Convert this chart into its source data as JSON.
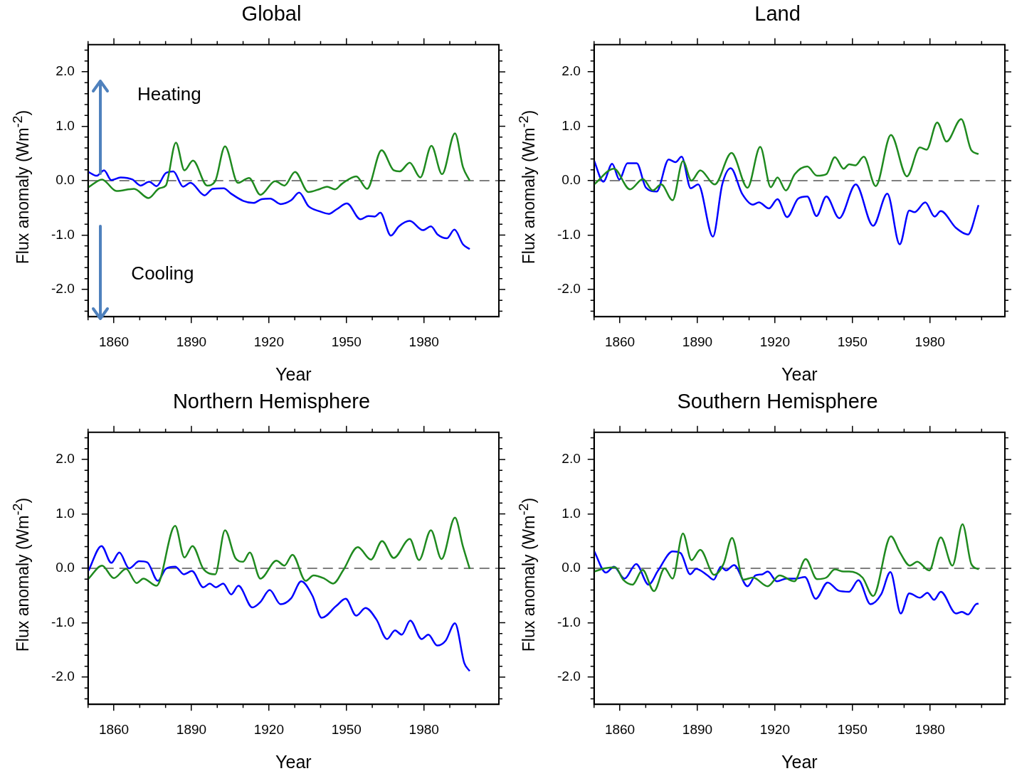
{
  "chart_data": [
    {
      "type": "line",
      "title": "Global",
      "xlabel": "Year",
      "ylabel": "Flux anomaly (Wm$^{-2}$)",
      "xlim": [
        1850,
        2009
      ],
      "xticks": [
        1860,
        1890,
        1920,
        1950,
        1980
      ],
      "ylim": [
        -2.5,
        2.5
      ],
      "yticks": [
        {
          "value": -2,
          "label": "-2.0"
        },
        {
          "value": -1,
          "label": "-1.0"
        },
        {
          "value": 0,
          "label": "0.0"
        },
        {
          "value": 1,
          "label": "1.0"
        },
        {
          "value": 2,
          "label": "2.0"
        }
      ],
      "grid": false,
      "legend": false,
      "annotations": [
        "Heating",
        "Cooling"
      ],
      "ref_lines": [
        {
          "axis": "y",
          "value": 0,
          "color": "#555555",
          "line_style": "dashed"
        }
      ],
      "series": [
        {
          "color": "#1f8a1f",
          "x": [
            1850.2,
            1855.4,
            1861,
            1867.8,
            1873.4,
            1877.6,
            1880.1,
            1884,
            1887.3,
            1890.6,
            1896.1,
            1899.2,
            1903,
            1908,
            1912.3,
            1916.7,
            1922.4,
            1926,
            1930.1,
            1935.3,
            1939.9,
            1942.5,
            1945.6,
            1948.2,
            1953.8,
            1958,
            1963.6,
            1968.3,
            1970.6,
            1974.5,
            1978.6,
            1982.9,
            1987,
            1992,
            1995.1,
            1997.7
          ],
          "values": [
            -0.12,
            0.02,
            -0.19,
            -0.15,
            -0.32,
            -0.14,
            -0.09,
            0.7,
            0.19,
            0.37,
            -0.09,
            -0.01,
            0.63,
            -0.04,
            0.05,
            -0.26,
            -0.01,
            -0.09,
            0.16,
            -0.21,
            -0.15,
            -0.11,
            -0.16,
            -0.06,
            0.08,
            -0.15,
            0.56,
            0.19,
            0.17,
            0.33,
            0.06,
            0.64,
            0.12,
            0.87,
            0.25,
            0.0
          ]
        },
        {
          "color": "#0000ff",
          "x": [
            1850.2,
            1853.3,
            1856.2,
            1859,
            1862.6,
            1867.2,
            1870.3,
            1873.7,
            1876.5,
            1880.1,
            1883,
            1886.8,
            1889.6,
            1895.1,
            1898.2,
            1902.5,
            1905.4,
            1910,
            1914,
            1917.2,
            1920.5,
            1924.5,
            1928.6,
            1931.7,
            1935.3,
            1939.4,
            1943.2,
            1946.1,
            1950.2,
            1955.4,
            1958.5,
            1960.9,
            1963.1,
            1967.2,
            1970.3,
            1974.5,
            1979.6,
            1982.7,
            1985.3,
            1988.9,
            1991.8,
            1995.1,
            1997.7
          ],
          "values": [
            0.16,
            0.09,
            0.19,
            0.01,
            0.06,
            0.02,
            -0.09,
            -0.02,
            -0.1,
            0.14,
            0.17,
            -0.11,
            -0.04,
            -0.27,
            -0.15,
            -0.14,
            -0.24,
            -0.37,
            -0.41,
            -0.34,
            -0.33,
            -0.43,
            -0.36,
            -0.22,
            -0.47,
            -0.56,
            -0.61,
            -0.53,
            -0.42,
            -0.71,
            -0.65,
            -0.66,
            -0.59,
            -1.01,
            -0.84,
            -0.74,
            -0.91,
            -0.84,
            -0.99,
            -1.06,
            -0.9,
            -1.17,
            -1.26
          ]
        }
      ]
    },
    {
      "type": "line",
      "title": "Land",
      "xlabel": "Year",
      "ylabel": "Flux anomaly (Wm$^{-2}$)",
      "xlim": [
        1850,
        2009
      ],
      "xticks": [
        1860,
        1890,
        1920,
        1950,
        1980
      ],
      "ylim": [
        -2.5,
        2.5
      ],
      "yticks": [
        {
          "value": -2,
          "label": "-2.0"
        },
        {
          "value": -1,
          "label": "-1.0"
        },
        {
          "value": 0,
          "label": "0.0"
        },
        {
          "value": 1,
          "label": "1.0"
        },
        {
          "value": 2,
          "label": "2.0"
        }
      ],
      "grid": false,
      "legend": false,
      "ref_lines": [
        {
          "axis": "y",
          "value": 0,
          "color": "#555555",
          "line_style": "dashed"
        }
      ],
      "series": [
        {
          "color": "#1f8a1f",
          "x": [
            1850,
            1857.7,
            1863.9,
            1868.9,
            1872.7,
            1876,
            1880.4,
            1884.4,
            1887.7,
            1891.1,
            1896.7,
            1903.2,
            1909.4,
            1914.3,
            1918.4,
            1921,
            1924.2,
            1927.7,
            1932.5,
            1936.3,
            1939.9,
            1943.2,
            1946.6,
            1948.7,
            1951.1,
            1954.4,
            1959,
            1964.9,
            1971.1,
            1976.1,
            1978.7,
            1982.8,
            1986.4,
            1992.1,
            1996,
            1998.8
          ],
          "values": [
            -0.07,
            0.22,
            -0.16,
            0.03,
            -0.18,
            -0.07,
            -0.36,
            0.36,
            0.0,
            0.19,
            -0.07,
            0.51,
            -0.13,
            0.62,
            -0.12,
            0.06,
            -0.18,
            0.12,
            0.26,
            0.09,
            0.12,
            0.43,
            0.22,
            0.3,
            0.28,
            0.44,
            -0.1,
            0.84,
            0.08,
            0.61,
            0.57,
            1.07,
            0.72,
            1.13,
            0.56,
            0.49
          ]
        },
        {
          "color": "#0000ff",
          "x": [
            1850,
            1853.6,
            1857,
            1859.8,
            1862.9,
            1866.5,
            1870.1,
            1874.2,
            1878.9,
            1881.5,
            1883.9,
            1887.4,
            1890.3,
            1896,
            1899.6,
            1902.9,
            1907.3,
            1911.5,
            1913.8,
            1917.7,
            1921,
            1924.7,
            1929,
            1932.5,
            1936.1,
            1939.9,
            1944.9,
            1951.3,
            1958,
            1963.5,
            1968.3,
            1972,
            1974,
            1978.2,
            1981.8,
            1984.2,
            1990.1,
            1994.7,
            1998.8
          ],
          "values": [
            0.37,
            -0.02,
            0.31,
            0.02,
            0.32,
            0.32,
            -0.13,
            -0.2,
            0.39,
            0.34,
            0.44,
            -0.14,
            -0.07,
            -1.03,
            -0.07,
            0.23,
            -0.24,
            -0.44,
            -0.4,
            -0.51,
            -0.34,
            -0.67,
            -0.33,
            -0.29,
            -0.65,
            -0.29,
            -0.69,
            -0.07,
            -0.83,
            -0.24,
            -1.17,
            -0.55,
            -0.58,
            -0.4,
            -0.66,
            -0.56,
            -0.87,
            -0.99,
            -0.45
          ]
        }
      ]
    },
    {
      "type": "line",
      "title": "Northern Hemisphere",
      "xlabel": "Year",
      "ylabel": "Flux anomaly (Wm$^{-2}$)",
      "xlim": [
        1850,
        2009
      ],
      "xticks": [
        1860,
        1890,
        1920,
        1950,
        1980
      ],
      "ylim": [
        -2.5,
        2.5
      ],
      "yticks": [
        {
          "value": -2,
          "label": "-2.0"
        },
        {
          "value": -1,
          "label": "-1.0"
        },
        {
          "value": 0,
          "label": "0.0"
        },
        {
          "value": 1,
          "label": "1.0"
        },
        {
          "value": 2,
          "label": "2.0"
        }
      ],
      "grid": false,
      "legend": false,
      "ref_lines": [
        {
          "axis": "y",
          "value": 0,
          "color": "#555555",
          "line_style": "dashed"
        }
      ],
      "series": [
        {
          "color": "#1f8a1f",
          "x": [
            1850.2,
            1855.4,
            1860,
            1864.7,
            1868.8,
            1871.4,
            1876.5,
            1883.7,
            1887.3,
            1890.4,
            1894.6,
            1899.2,
            1903,
            1907,
            1910,
            1912.6,
            1916.7,
            1922.9,
            1926,
            1929.1,
            1934.2,
            1937.3,
            1941.5,
            1944.9,
            1948.7,
            1954.4,
            1959.5,
            1963.8,
            1968.3,
            1974.5,
            1978.1,
            1982.7,
            1986.8,
            1992,
            1995.1,
            1997.7
          ],
          "values": [
            -0.19,
            0.05,
            -0.18,
            -0.01,
            -0.27,
            -0.19,
            -0.32,
            0.78,
            0.2,
            0.41,
            -0.01,
            -0.11,
            0.7,
            0.19,
            0.12,
            0.29,
            -0.19,
            0.14,
            0.05,
            0.25,
            -0.23,
            -0.13,
            -0.19,
            -0.28,
            -0.04,
            0.39,
            0.16,
            0.5,
            0.19,
            0.54,
            0.15,
            0.7,
            0.17,
            0.93,
            0.4,
            -0.01
          ]
        },
        {
          "color": "#0000ff",
          "x": [
            1850.2,
            1855.2,
            1859,
            1862.1,
            1865.9,
            1869.8,
            1872.9,
            1877,
            1880.1,
            1883.7,
            1887.1,
            1890.2,
            1894.6,
            1897.1,
            1899.5,
            1902.3,
            1905.4,
            1908.2,
            1913.6,
            1916.7,
            1920.3,
            1924.5,
            1928.6,
            1932.5,
            1936.8,
            1940.4,
            1946.1,
            1949.7,
            1953.8,
            1957.4,
            1961.6,
            1965.7,
            1968.8,
            1971.4,
            1974.7,
            1979.1,
            1981.7,
            1985.1,
            1988.4,
            1992,
            1995.6,
            1997.7
          ],
          "values": [
            -0.04,
            0.41,
            0.1,
            0.29,
            0.0,
            0.13,
            0.11,
            -0.23,
            -0.01,
            0.03,
            -0.11,
            -0.05,
            -0.35,
            -0.28,
            -0.35,
            -0.28,
            -0.48,
            -0.32,
            -0.72,
            -0.62,
            -0.4,
            -0.66,
            -0.55,
            -0.24,
            -0.5,
            -0.91,
            -0.69,
            -0.56,
            -0.87,
            -0.73,
            -0.94,
            -1.3,
            -1.14,
            -1.22,
            -0.96,
            -1.3,
            -1.22,
            -1.42,
            -1.33,
            -1.01,
            -1.74,
            -1.89
          ]
        }
      ]
    },
    {
      "type": "line",
      "title": "Southern Hemisphere",
      "xlabel": "Year",
      "ylabel": "Flux anomaly (Wm$^{-2}$)",
      "xlim": [
        1850,
        2009
      ],
      "xticks": [
        1860,
        1890,
        1920,
        1950,
        1980
      ],
      "ylim": [
        -2.5,
        2.5
      ],
      "yticks": [
        {
          "value": -2,
          "label": "-2.0"
        },
        {
          "value": -1,
          "label": "-1.0"
        },
        {
          "value": 0,
          "label": "0.0"
        },
        {
          "value": 1,
          "label": "1.0"
        },
        {
          "value": 2,
          "label": "2.0"
        }
      ],
      "grid": false,
      "legend": false,
      "ref_lines": [
        {
          "axis": "y",
          "value": 0,
          "color": "#555555",
          "line_style": "dashed"
        }
      ],
      "series": [
        {
          "color": "#1f8a1f",
          "x": [
            1850,
            1854.1,
            1858.2,
            1861.3,
            1864.9,
            1868.8,
            1873.2,
            1877.3,
            1880.4,
            1884.4,
            1887.7,
            1891.1,
            1896.5,
            1900.1,
            1903.4,
            1907.8,
            1911.5,
            1917.2,
            1921.8,
            1927.5,
            1931.9,
            1936.3,
            1939.9,
            1943.2,
            1946.6,
            1948.7,
            1953.9,
            1958,
            1964.9,
            1968.3,
            1972.2,
            1975.1,
            1979.7,
            1984.2,
            1988.7,
            1992.6,
            1996,
            1998.9
          ],
          "values": [
            -0.06,
            0.0,
            0.02,
            -0.21,
            -0.3,
            -0.03,
            -0.42,
            0.0,
            -0.19,
            0.64,
            0.15,
            0.34,
            -0.12,
            0.08,
            0.56,
            -0.21,
            -0.17,
            -0.33,
            -0.13,
            -0.24,
            0.17,
            -0.2,
            -0.17,
            -0.02,
            -0.06,
            -0.06,
            -0.17,
            -0.51,
            0.59,
            0.3,
            0.05,
            0.12,
            -0.04,
            0.57,
            0.05,
            0.81,
            0.08,
            -0.02
          ]
        },
        {
          "color": "#0000ff",
          "x": [
            1850,
            1854.6,
            1857.7,
            1861.8,
            1866.3,
            1871.1,
            1874.8,
            1880.4,
            1883.5,
            1887.2,
            1889.5,
            1893.9,
            1896.3,
            1899.1,
            1901.1,
            1904.2,
            1909.4,
            1912.5,
            1915.1,
            1917.2,
            1920.8,
            1924.4,
            1928,
            1931.6,
            1935.8,
            1940.4,
            1944.6,
            1948.7,
            1952.3,
            1957,
            1961.1,
            1964.7,
            1968.7,
            1972,
            1976.1,
            1979,
            1981.6,
            1984.2,
            1990.1,
            1992.4,
            1994.7,
            1997.8,
            1998.8
          ],
          "values": [
            0.32,
            -0.08,
            0.03,
            -0.19,
            0.08,
            -0.3,
            -0.04,
            0.31,
            0.28,
            -0.11,
            -0.01,
            -0.13,
            -0.21,
            0.03,
            -0.04,
            0.06,
            -0.33,
            -0.13,
            -0.11,
            -0.06,
            -0.24,
            -0.19,
            -0.19,
            -0.16,
            -0.56,
            -0.26,
            -0.41,
            -0.43,
            -0.22,
            -0.66,
            -0.48,
            -0.07,
            -0.83,
            -0.46,
            -0.54,
            -0.45,
            -0.58,
            -0.43,
            -0.83,
            -0.8,
            -0.85,
            -0.66,
            -0.65
          ]
        }
      ]
    }
  ]
}
